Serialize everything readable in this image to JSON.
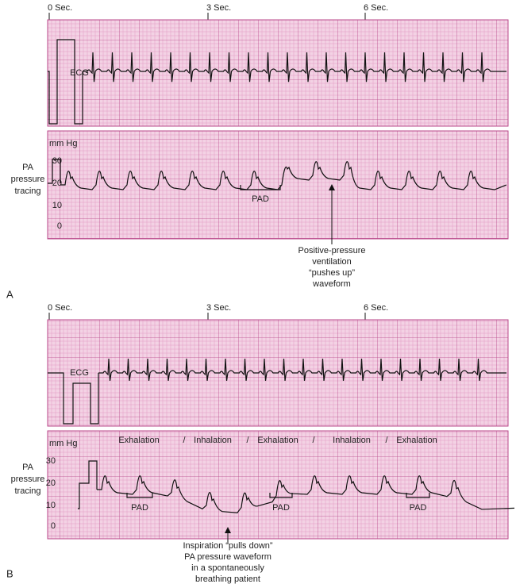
{
  "panels": [
    {
      "label": "A",
      "time_labels": [
        "0 Sec.",
        "3 Sec.",
        "6 Sec."
      ],
      "ecg_label": "ECG",
      "pressure_unit": "mm Hg",
      "pa_label": [
        "PA",
        "pressure",
        "tracing"
      ],
      "scale": [
        "30",
        "20",
        "10",
        "0"
      ],
      "pad_labels": [
        "PAD"
      ],
      "annotation": [
        "Positive-pressure",
        "ventilation",
        "“pushes up”",
        "waveform"
      ]
    },
    {
      "label": "B",
      "time_labels": [
        "0 Sec.",
        "3 Sec.",
        "6 Sec."
      ],
      "ecg_label": "ECG",
      "pressure_unit": "mm Hg",
      "pa_label": [
        "PA",
        "pressure",
        "tracing"
      ],
      "scale": [
        "30",
        "20",
        "10",
        "0"
      ],
      "pad_labels": [
        "PAD",
        "PAD",
        "PAD"
      ],
      "phases": [
        "Exhalation",
        "/",
        "Inhalation",
        "/",
        "Exhalation",
        "/",
        "Inhalation",
        "/",
        "Exhalation"
      ],
      "annotation": [
        "Inspiration “pulls down”",
        "PA pressure waveform",
        "in a spontaneously",
        "breathing patient"
      ]
    }
  ]
}
